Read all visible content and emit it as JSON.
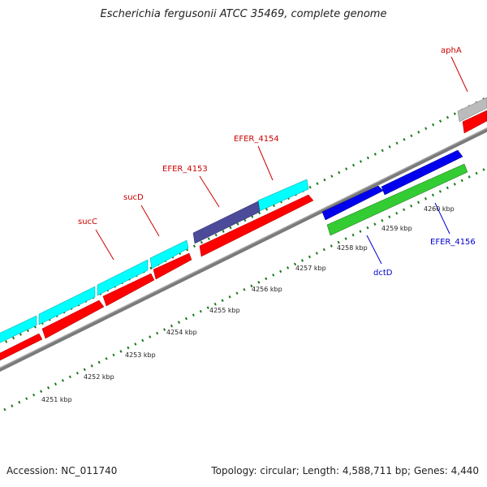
{
  "title": "Escherichia fergusonii ATCC 35469, complete genome",
  "footer": {
    "accession": "Accession: NC_011740",
    "summary": "Topology: circular; Length: 4,588,711 bp; Genes: 4,440"
  },
  "colors": {
    "cyan_gene": "#00ffff",
    "red_cds": "#ff0000",
    "blue_gene": "#0000ee",
    "green_gene": "#33cc33",
    "slate_gene": "#4b4b99",
    "grey_gene": "#bbbbbb",
    "backbone": "#808080",
    "ticks": "#1a7a1a",
    "label_red": "#cc0000",
    "label_blue": "#0000cc"
  },
  "kbp_labels": [
    "4251 kbp",
    "4252 kbp",
    "4253 kbp",
    "4254 kbp",
    "4255 kbp",
    "4256 kbp",
    "4257 kbp",
    "4258 kbp",
    "4259 kbp",
    "4260 kbp"
  ],
  "gene_labels": {
    "sucC": "sucC",
    "sucD": "sucD",
    "efer4153": "EFER_4153",
    "efer4154": "EFER_4154",
    "aphA": "aphA",
    "dctD": "dctD",
    "efer4156": "EFER_4156"
  }
}
